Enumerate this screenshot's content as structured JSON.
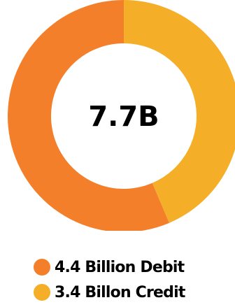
{
  "chart_data": {
    "type": "pie",
    "variant": "donut",
    "center_label": "7.7B",
    "slices": [
      {
        "label": "4.4 Billion Debit",
        "value": 4.4,
        "color": "#F47F2A"
      },
      {
        "label": "3.4 Billon Credit",
        "value": 3.4,
        "color": "#F4AE28"
      }
    ],
    "legend_placement": "bottom"
  },
  "legend": {
    "items": [
      {
        "label": "4.4 Billion Debit",
        "color": "#F47F2A"
      },
      {
        "label": "3.4 Billon Credit",
        "color": "#F4AE28"
      }
    ]
  }
}
